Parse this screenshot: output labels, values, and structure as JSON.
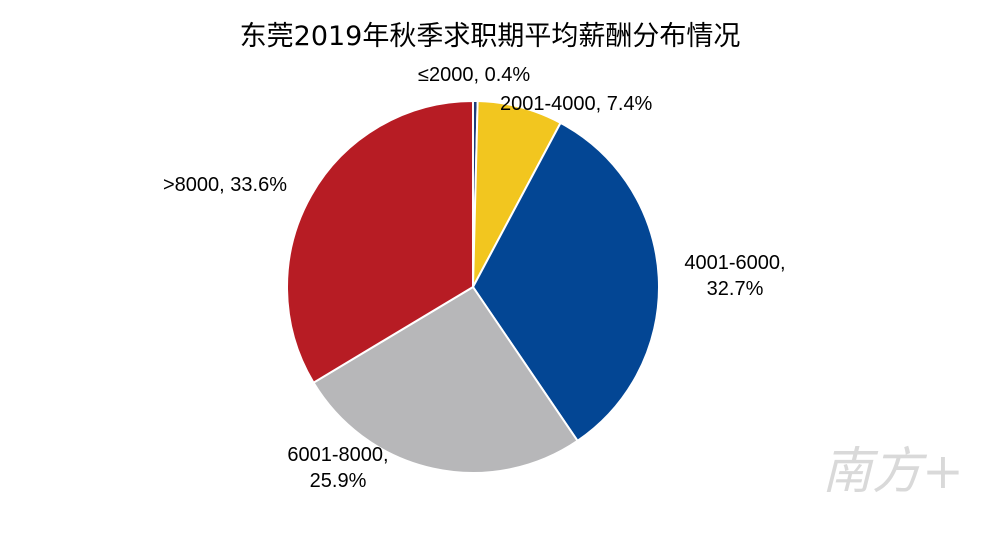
{
  "chart_data": {
    "type": "pie",
    "title": "东莞2019年秋季求职期平均薪酬分布情况",
    "slices": [
      {
        "category": "≤2000",
        "value": 0.4,
        "label_line1": "≤2000, 0.4%",
        "label_line2": "",
        "color": "#1f3d7a"
      },
      {
        "category": "2001-4000",
        "value": 7.4,
        "label_line1": "2001-4000, 7.4%",
        "label_line2": "",
        "color": "#f2c61f"
      },
      {
        "category": "4001-6000",
        "value": 32.7,
        "label_line1": "4001-6000,",
        "label_line2": "32.7%",
        "color": "#034694"
      },
      {
        "category": "6001-8000",
        "value": 25.9,
        "label_line1": "6001-8000,",
        "label_line2": "25.9%",
        "color": "#b7b7b9"
      },
      {
        "category": ">8000",
        "value": 33.6,
        "label_line1": ">8000, 33.6%",
        "label_line2": "",
        "color": "#b71c24"
      }
    ],
    "legend": "none"
  },
  "watermark": {
    "text": "南方+"
  }
}
